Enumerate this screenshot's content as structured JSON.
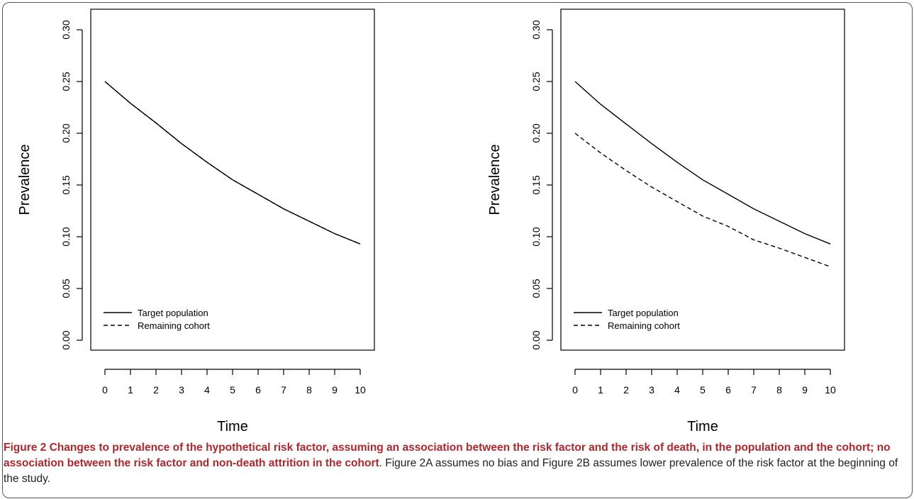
{
  "chart_data": [
    {
      "type": "line",
      "panel": "A",
      "xlabel": "Time",
      "ylabel": "Prevalence",
      "xlim": [
        0,
        10
      ],
      "ylim": [
        0,
        0.3
      ],
      "x_ticks": [
        "0",
        "1",
        "2",
        "3",
        "4",
        "5",
        "6",
        "7",
        "8",
        "9",
        "10"
      ],
      "y_ticks": [
        "0.00",
        "0.05",
        "0.10",
        "0.15",
        "0.20",
        "0.25",
        "0.30"
      ],
      "legend": {
        "position": "bottom-left",
        "entries": [
          {
            "label": "Target population",
            "style": "solid"
          },
          {
            "label": "Remaining cohort",
            "style": "dashed"
          }
        ]
      },
      "series": [
        {
          "name": "Target population",
          "style": "solid",
          "x": [
            0,
            1,
            2,
            3,
            4,
            5,
            6,
            7,
            8,
            9,
            10
          ],
          "y": [
            0.25,
            0.229,
            0.21,
            0.19,
            0.172,
            0.155,
            0.141,
            0.127,
            0.115,
            0.103,
            0.093
          ]
        },
        {
          "name": "Remaining cohort",
          "style": "dashed",
          "x": [
            0,
            1,
            2,
            3,
            4,
            5,
            6,
            7,
            8,
            9,
            10
          ],
          "y": [
            0.25,
            0.229,
            0.21,
            0.19,
            0.172,
            0.155,
            0.141,
            0.127,
            0.115,
            0.103,
            0.093
          ]
        }
      ]
    },
    {
      "type": "line",
      "panel": "B",
      "xlabel": "Time",
      "ylabel": "Prevalence",
      "xlim": [
        0,
        10
      ],
      "ylim": [
        0,
        0.3
      ],
      "x_ticks": [
        "0",
        "1",
        "2",
        "3",
        "4",
        "5",
        "6",
        "7",
        "8",
        "9",
        "10"
      ],
      "y_ticks": [
        "0.00",
        "0.05",
        "0.10",
        "0.15",
        "0.20",
        "0.25",
        "0.30"
      ],
      "legend": {
        "position": "bottom-left",
        "entries": [
          {
            "label": "Target population",
            "style": "solid"
          },
          {
            "label": "Remaining cohort",
            "style": "dashed"
          }
        ]
      },
      "series": [
        {
          "name": "Target population",
          "style": "solid",
          "x": [
            0,
            1,
            2,
            3,
            4,
            5,
            6,
            7,
            8,
            9,
            10
          ],
          "y": [
            0.25,
            0.228,
            0.209,
            0.19,
            0.172,
            0.155,
            0.141,
            0.127,
            0.115,
            0.103,
            0.093
          ]
        },
        {
          "name": "Remaining cohort",
          "style": "dashed",
          "x": [
            0,
            1,
            2,
            3,
            4,
            5,
            6,
            7,
            8,
            9,
            10
          ],
          "y": [
            0.2,
            0.181,
            0.164,
            0.148,
            0.134,
            0.12,
            0.11,
            0.097,
            0.089,
            0.08,
            0.071
          ]
        }
      ]
    }
  ],
  "caption": {
    "bold": "Figure 2 Changes to prevalence of the hypothetical risk factor, assuming an association between the risk factor and the risk of death, in the population and the cohort; no association between the risk factor and non-death attrition in the cohort",
    "rest": ". Figure 2A assumes no bias and Figure 2B assumes lower prevalence of the risk factor at the beginning of the study."
  }
}
